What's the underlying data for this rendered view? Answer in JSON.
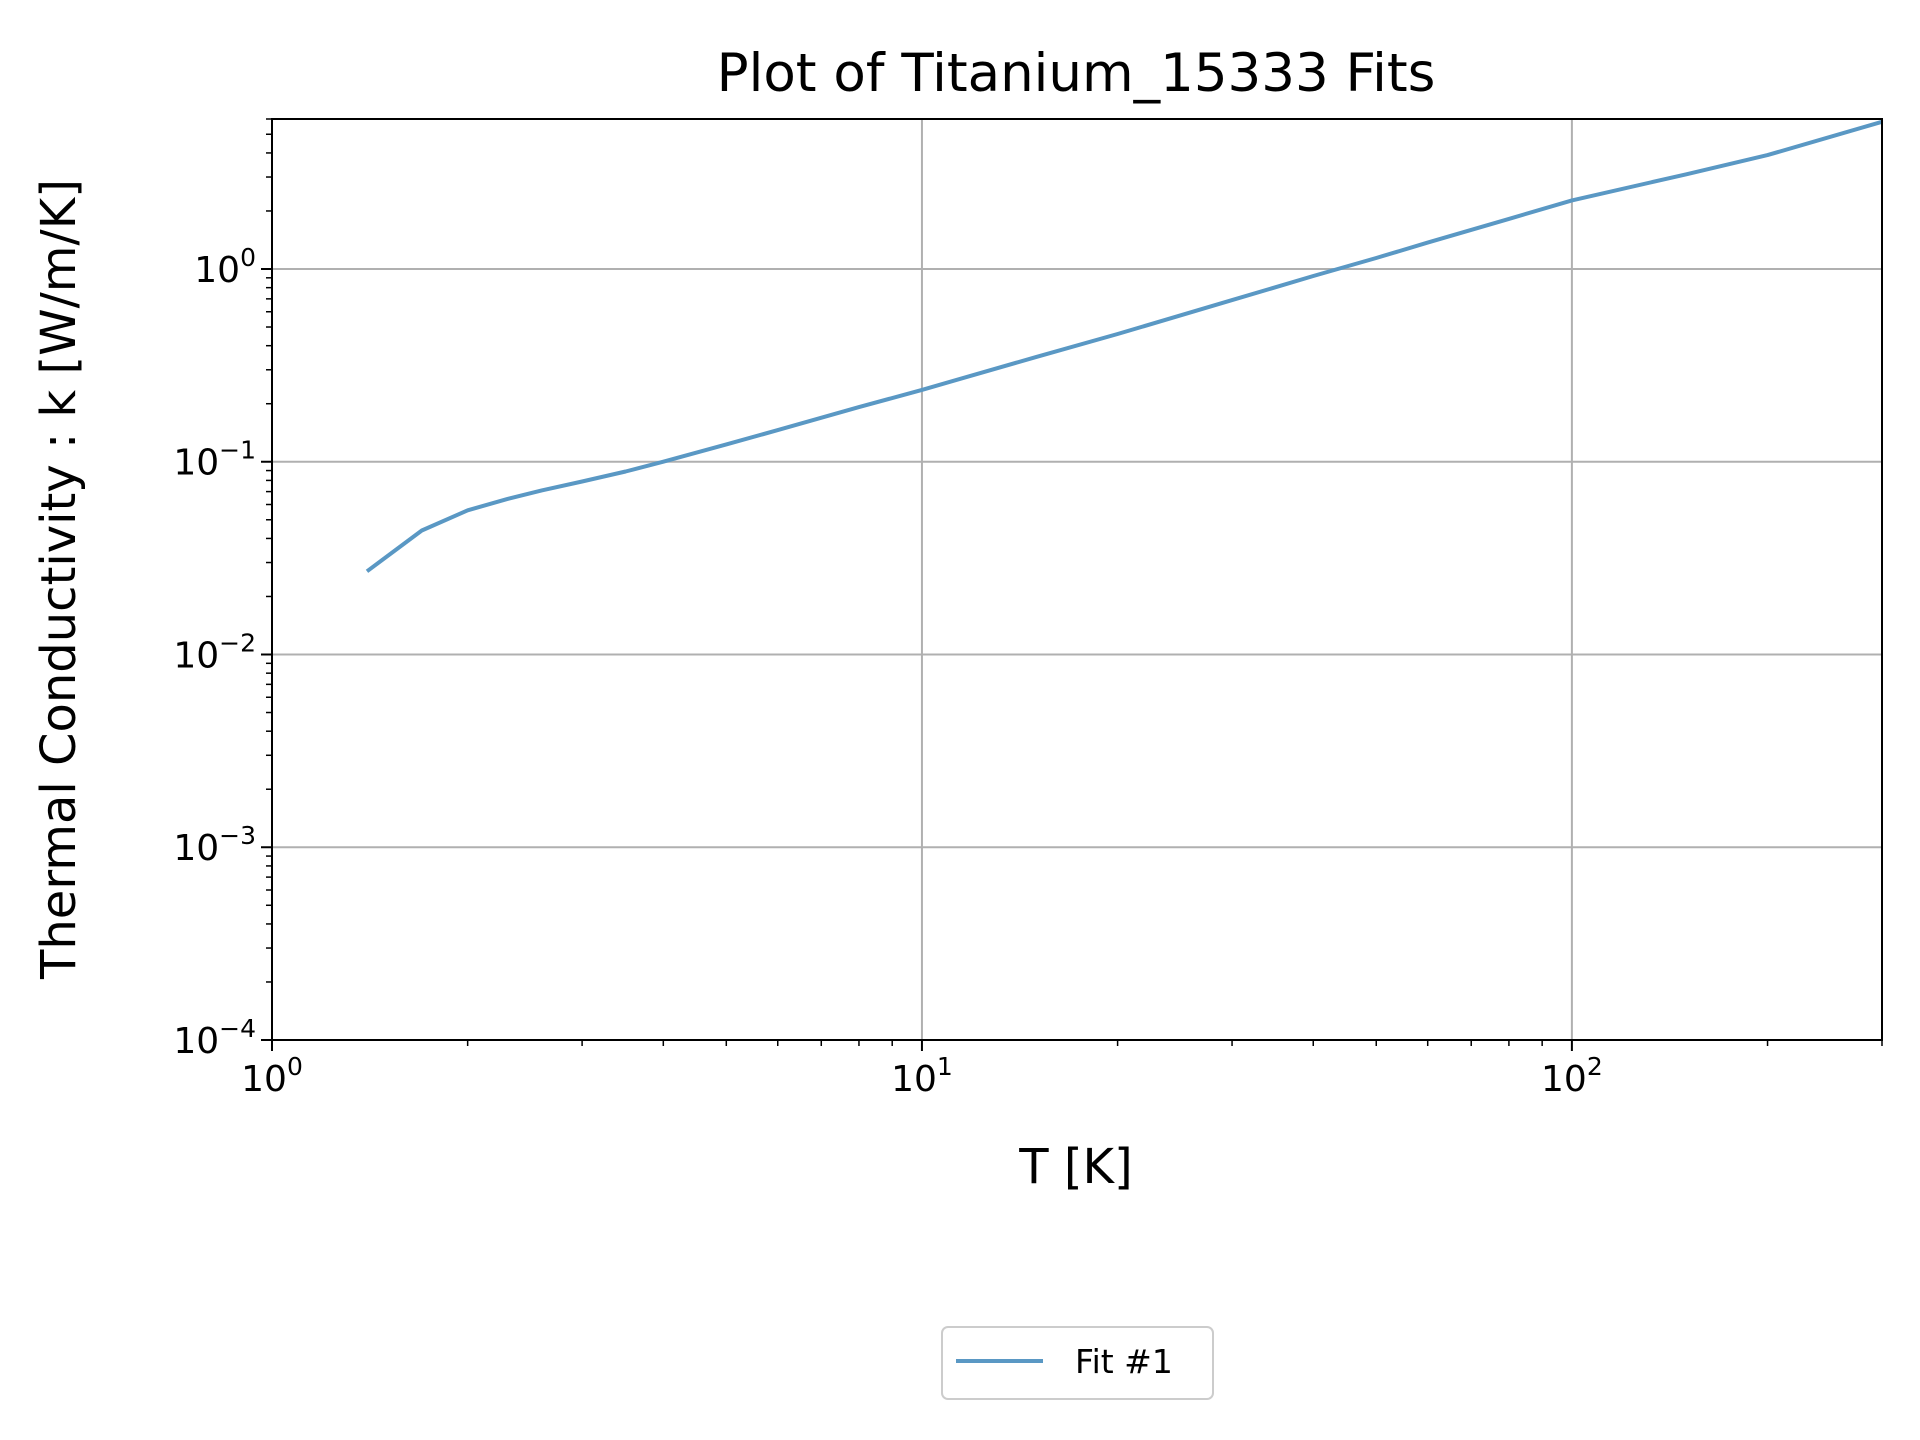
{
  "chart_data": {
    "type": "line",
    "title": "Plot of Titanium_15333 Fits",
    "xlabel": "T [K]",
    "ylabel": "Thermal Conductivity : k [W/m/K]",
    "xscale": "log",
    "yscale": "log",
    "xlim": [
      1,
      300
    ],
    "ylim": [
      0.0001,
      6
    ],
    "grid": true,
    "legend_position": "bottom-center, below plot",
    "x_ticks": [
      {
        "base": "10",
        "exp": "0",
        "value": 1
      },
      {
        "base": "10",
        "exp": "1",
        "value": 10
      },
      {
        "base": "10",
        "exp": "2",
        "value": 100
      }
    ],
    "y_ticks": [
      {
        "base": "10",
        "exp": "0",
        "value": 1
      },
      {
        "base": "10",
        "exp": "−1",
        "value": 0.1
      },
      {
        "base": "10",
        "exp": "−2",
        "value": 0.01
      },
      {
        "base": "10",
        "exp": "−3",
        "value": 0.001
      },
      {
        "base": "10",
        "exp": "−4",
        "value": 0.0001
      }
    ],
    "series": [
      {
        "name": "Fit #1",
        "color": "#5a98c4",
        "x": [
          1.4,
          1.7,
          2.0,
          2.3,
          2.6,
          3.0,
          3.5,
          4.0,
          5.0,
          6.0,
          8.0,
          10,
          15,
          20,
          30,
          40,
          50,
          60,
          80,
          100,
          150,
          200,
          300
        ],
        "y": [
          0.027,
          0.044,
          0.056,
          0.064,
          0.071,
          0.079,
          0.089,
          0.1,
          0.123,
          0.146,
          0.192,
          0.236,
          0.35,
          0.46,
          0.69,
          0.92,
          1.14,
          1.37,
          1.82,
          2.27,
          3.1,
          3.9,
          5.8
        ]
      }
    ]
  }
}
